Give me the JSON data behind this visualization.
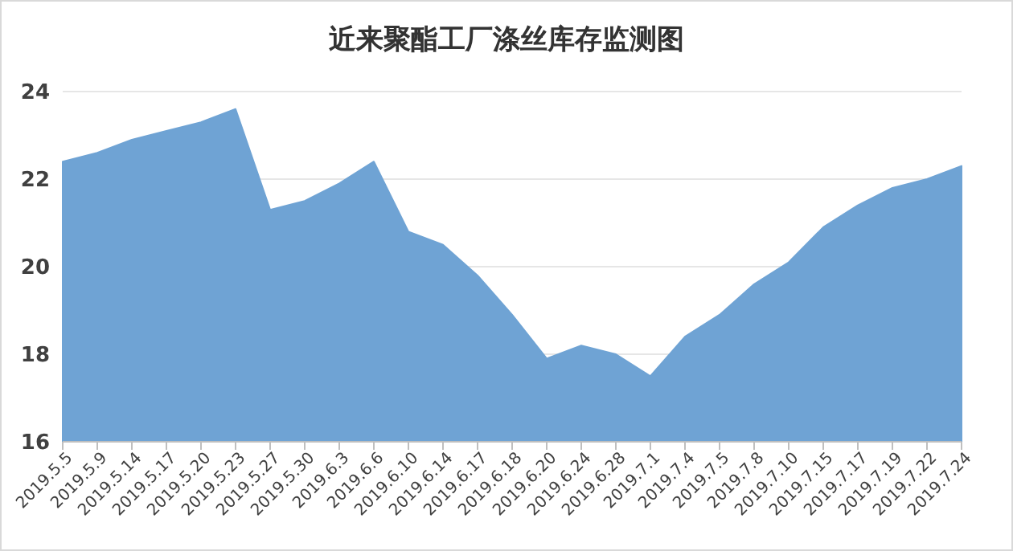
{
  "chart_data": {
    "type": "area",
    "title": "近来聚酯工厂涤丝库存监测图",
    "categories": [
      "2019.5.5",
      "2019.5.9",
      "2019.5.14",
      "2019.5.17",
      "2019.5.20",
      "2019.5.23",
      "2019.5.27",
      "2019.5.30",
      "2019.6.3",
      "2019.6.6",
      "2019.6.10",
      "2019.6.14",
      "2019.6.17",
      "2019.6.18",
      "2019.6.20",
      "2019.6.24",
      "2019.6.28",
      "2019.7.1",
      "2019.7.4",
      "2019.7.5",
      "2019.7.8",
      "2019.7.10",
      "2019.7.15",
      "2019.7.17",
      "2019.7.19",
      "2019.7.22",
      "2019.7.24"
    ],
    "series": [
      {
        "color": "#6fa3d4",
        "values": [
          22.4,
          22.6,
          22.9,
          23.1,
          23.3,
          23.6,
          21.3,
          21.5,
          21.9,
          22.4,
          20.8,
          20.5,
          19.8,
          18.9,
          17.9,
          18.2,
          18.0,
          17.5,
          18.4,
          18.9,
          19.6,
          20.1,
          20.9,
          21.4,
          21.8,
          22.0,
          22.3
        ]
      }
    ],
    "ylim": [
      16,
      24
    ],
    "yticks": [
      16,
      18,
      20,
      22,
      24
    ],
    "grid": "y"
  }
}
